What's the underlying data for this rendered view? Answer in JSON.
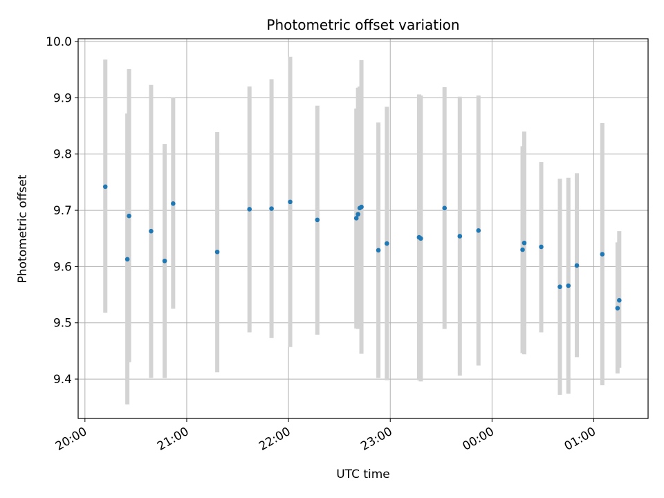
{
  "chart_data": {
    "type": "scatter",
    "title": "Photometric offset variation",
    "xlabel": "UTC time",
    "ylabel": "Photometric offset",
    "x_is_time": true,
    "x_domain": [
      "19:56",
      "01:32"
    ],
    "ylim": [
      9.33,
      10.005
    ],
    "x_ticks": [
      "20:00",
      "21:00",
      "22:00",
      "23:00",
      "00:00",
      "01:00"
    ],
    "y_ticks": [
      9.4,
      9.5,
      9.6,
      9.7,
      9.8,
      9.9,
      10.0
    ],
    "y_tick_labels": [
      "9.4",
      "9.5",
      "9.6",
      "9.7",
      "9.8",
      "9.9",
      "10.0"
    ],
    "grid": true,
    "colors": {
      "point": "#1f77b4",
      "errorbar": "#d3d3d3",
      "grid": "#b0b0b0"
    },
    "series": [
      {
        "points": [
          {
            "x": "20:12",
            "y": 9.742,
            "ylow": 9.518,
            "yhigh": 9.968
          },
          {
            "x": "20:25",
            "y": 9.613,
            "ylow": 9.355,
            "yhigh": 9.872
          },
          {
            "x": "20:26",
            "y": 9.69,
            "ylow": 9.43,
            "yhigh": 9.951
          },
          {
            "x": "20:39",
            "y": 9.663,
            "ylow": 9.402,
            "yhigh": 9.923
          },
          {
            "x": "20:47",
            "y": 9.61,
            "ylow": 9.402,
            "yhigh": 9.818
          },
          {
            "x": "20:52",
            "y": 9.712,
            "ylow": 9.525,
            "yhigh": 9.9
          },
          {
            "x": "21:18",
            "y": 9.626,
            "ylow": 9.412,
            "yhigh": 9.839
          },
          {
            "x": "21:37",
            "y": 9.702,
            "ylow": 9.483,
            "yhigh": 9.92
          },
          {
            "x": "21:50",
            "y": 9.703,
            "ylow": 9.473,
            "yhigh": 9.933
          },
          {
            "x": "22:01",
            "y": 9.715,
            "ylow": 9.457,
            "yhigh": 9.973
          },
          {
            "x": "22:17",
            "y": 9.683,
            "ylow": 9.479,
            "yhigh": 9.886
          },
          {
            "x": "22:40",
            "y": 9.686,
            "ylow": 9.49,
            "yhigh": 9.881
          },
          {
            "x": "22:41",
            "y": 9.693,
            "ylow": 9.489,
            "yhigh": 9.918
          },
          {
            "x": "22:42",
            "y": 9.704,
            "ylow": 9.49,
            "yhigh": 9.92
          },
          {
            "x": "22:43",
            "y": 9.706,
            "ylow": 9.445,
            "yhigh": 9.967
          },
          {
            "x": "22:53",
            "y": 9.629,
            "ylow": 9.402,
            "yhigh": 9.856
          },
          {
            "x": "22:58",
            "y": 9.641,
            "ylow": 9.398,
            "yhigh": 9.884
          },
          {
            "x": "23:17",
            "y": 9.652,
            "ylow": 9.398,
            "yhigh": 9.906
          },
          {
            "x": "23:18",
            "y": 9.65,
            "ylow": 9.396,
            "yhigh": 9.904
          },
          {
            "x": "23:32",
            "y": 9.704,
            "ylow": 9.489,
            "yhigh": 9.919
          },
          {
            "x": "23:41",
            "y": 9.654,
            "ylow": 9.406,
            "yhigh": 9.902
          },
          {
            "x": "23:52",
            "y": 9.664,
            "ylow": 9.424,
            "yhigh": 9.904
          },
          {
            "x": "00:18",
            "y": 9.63,
            "ylow": 9.446,
            "yhigh": 9.814
          },
          {
            "x": "00:19",
            "y": 9.642,
            "ylow": 9.444,
            "yhigh": 9.84
          },
          {
            "x": "00:29",
            "y": 9.635,
            "ylow": 9.483,
            "yhigh": 9.786
          },
          {
            "x": "00:40",
            "y": 9.564,
            "ylow": 9.372,
            "yhigh": 9.756
          },
          {
            "x": "00:45",
            "y": 9.566,
            "ylow": 9.374,
            "yhigh": 9.758
          },
          {
            "x": "00:50",
            "y": 9.602,
            "ylow": 9.439,
            "yhigh": 9.766
          },
          {
            "x": "01:05",
            "y": 9.622,
            "ylow": 9.389,
            "yhigh": 9.855
          },
          {
            "x": "01:14",
            "y": 9.526,
            "ylow": 9.41,
            "yhigh": 9.643
          },
          {
            "x": "01:15",
            "y": 9.54,
            "ylow": 9.42,
            "yhigh": 9.663
          }
        ]
      }
    ]
  }
}
